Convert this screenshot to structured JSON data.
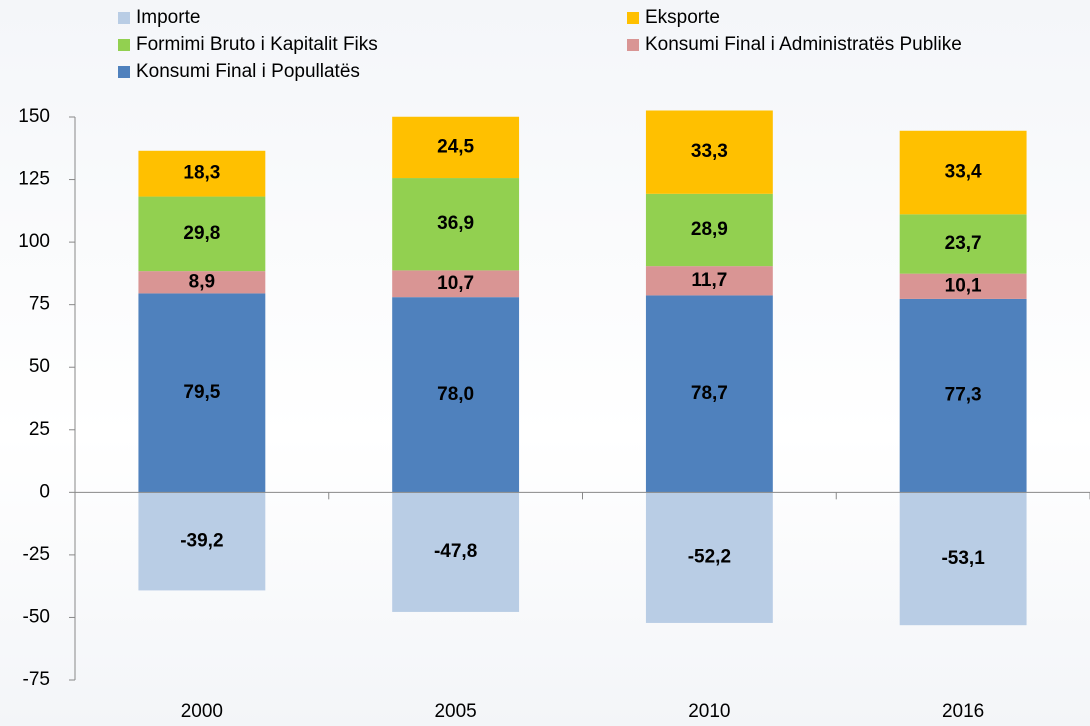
{
  "chart_data": {
    "type": "stacked_bar",
    "categories": [
      "2000",
      "2005",
      "2010",
      "2016"
    ],
    "series": [
      {
        "name": "Importe",
        "color": "#b9cde5",
        "values": [
          -39.2,
          -47.8,
          -52.2,
          -53.1
        ],
        "value_labels": [
          "-39,2",
          "-47,8",
          "-52,2",
          "-53,1"
        ]
      },
      {
        "name": "Eksporte",
        "color": "#ffc000",
        "values": [
          18.3,
          24.5,
          33.3,
          33.4
        ],
        "value_labels": [
          "18,3",
          "24,5",
          "33,3",
          "33,4"
        ]
      },
      {
        "name": "Formimi Bruto i Kapitalit Fiks",
        "color": "#92d050",
        "values": [
          29.8,
          36.9,
          28.9,
          23.7
        ],
        "value_labels": [
          "29,8",
          "36,9",
          "28,9",
          "23,7"
        ]
      },
      {
        "name": "Konsumi Final i Administratës Publike",
        "color": "#d99594",
        "values": [
          8.9,
          10.7,
          11.7,
          10.1
        ],
        "value_labels": [
          "8,9",
          "10,7",
          "11,7",
          "10,1"
        ]
      },
      {
        "name": "Konsumi Final i Popullatës",
        "color": "#4f81bd",
        "values": [
          79.5,
          78.0,
          78.7,
          77.3
        ],
        "value_labels": [
          "79,5",
          "78,0",
          "78,7",
          "77,3"
        ]
      }
    ],
    "ylim": [
      -75,
      150
    ],
    "yticks": [
      -75,
      -50,
      -25,
      0,
      25,
      50,
      75,
      100,
      125,
      150
    ],
    "grid": false
  }
}
